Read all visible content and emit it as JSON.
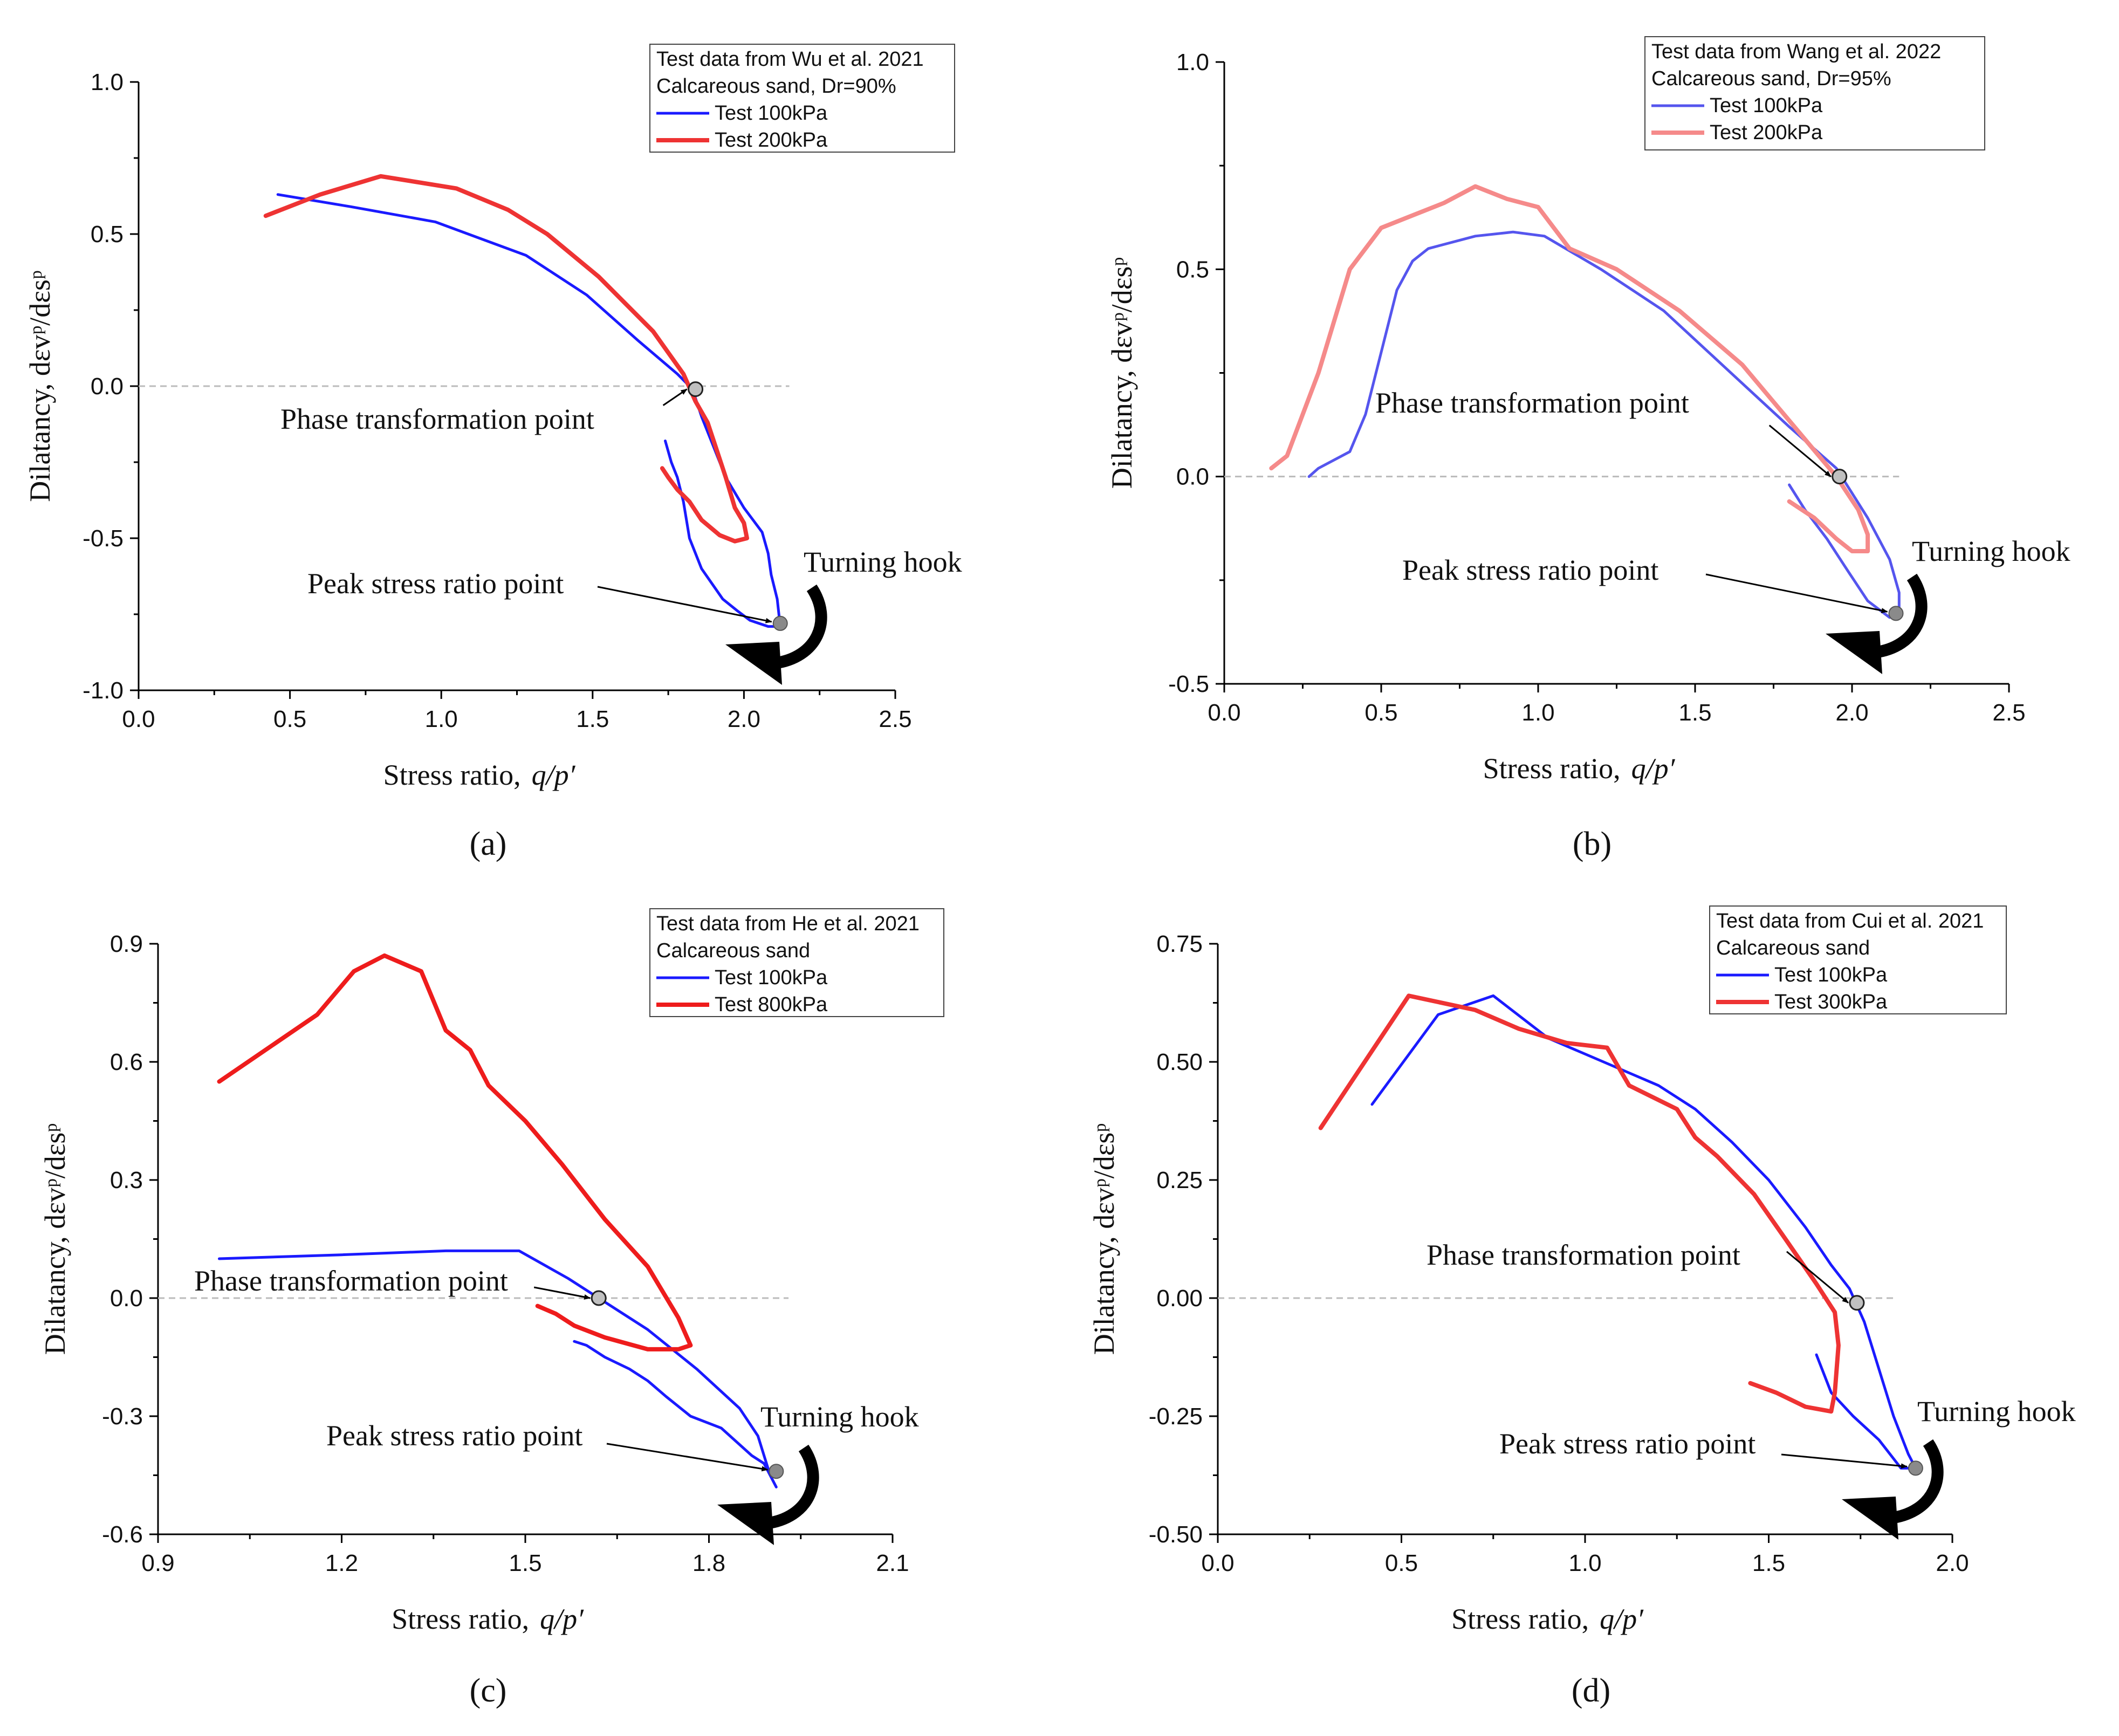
{
  "figure": {
    "panel_labels": [
      "(a)",
      "(b)",
      "(c)",
      "(d)"
    ]
  },
  "chart_data": [
    {
      "id": "a",
      "type": "line",
      "panel_label": "(a)",
      "xlabel": "Stress ratio,",
      "xlabel_var": "q/p′",
      "ylabel": "Dilatancy, dεvᵖ/dεsᵖ",
      "xlim": [
        0,
        2.5
      ],
      "ylim": [
        -1.0,
        1.0
      ],
      "xticks": [
        0,
        0.5,
        1.0,
        1.5,
        2.0,
        2.5
      ],
      "xtick_labels": [
        "0.0",
        "0.5",
        "1.0",
        "1.5",
        "2.0",
        "2.5"
      ],
      "yticks": [
        -1.0,
        -0.5,
        0.0,
        0.5,
        1.0
      ],
      "ytick_labels": [
        "-1.0",
        "-0.5",
        "0.0",
        "0.5",
        "1.0"
      ],
      "zero_line_xmax": 2.15,
      "legend_title": [
        "Test data from Wu et al. 2021",
        "Calcareous sand, Dr=90%"
      ],
      "series": [
        {
          "name": "Test 100kPa",
          "color": "#1a1aff",
          "x": [
            0.46,
            0.7,
            0.98,
            1.28,
            1.48,
            1.65,
            1.78,
            1.83,
            1.86,
            1.9,
            1.94,
            2.0,
            2.06,
            2.08,
            2.09,
            2.11,
            2.12,
            2.08,
            2.02,
            1.98,
            1.93,
            1.86,
            1.82,
            1.8,
            1.78,
            1.76,
            1.74
          ],
          "y": [
            0.63,
            0.59,
            0.54,
            0.43,
            0.3,
            0.15,
            0.04,
            -0.01,
            -0.1,
            -0.2,
            -0.3,
            -0.4,
            -0.48,
            -0.55,
            -0.62,
            -0.7,
            -0.79,
            -0.79,
            -0.77,
            -0.74,
            -0.7,
            -0.6,
            -0.5,
            -0.38,
            -0.3,
            -0.25,
            -0.18
          ]
        },
        {
          "name": "Test 200kPa",
          "color": "#ee3333",
          "x": [
            0.42,
            0.6,
            0.8,
            1.05,
            1.22,
            1.35,
            1.52,
            1.7,
            1.8,
            1.84,
            1.88,
            1.9,
            1.94,
            1.97,
            2.0,
            2.01,
            1.97,
            1.92,
            1.86,
            1.82,
            1.78,
            1.75,
            1.73
          ],
          "y": [
            0.56,
            0.63,
            0.69,
            0.65,
            0.58,
            0.5,
            0.36,
            0.18,
            0.04,
            -0.05,
            -0.12,
            -0.18,
            -0.3,
            -0.4,
            -0.45,
            -0.5,
            -0.51,
            -0.49,
            -0.44,
            -0.38,
            -0.34,
            -0.3,
            -0.27
          ]
        }
      ],
      "points": {
        "pt": {
          "x": 1.84,
          "y": -0.01
        },
        "peak": {
          "x": 2.12,
          "y": -0.78
        }
      },
      "annotations": {
        "phase_transformation": "Phase transformation point",
        "peak_stress_ratio": "Peak stress ratio point",
        "turning_hook": "Turning hook"
      }
    },
    {
      "id": "b",
      "type": "line",
      "panel_label": "(b)",
      "xlabel": "Stress ratio,",
      "xlabel_var": "q/p′",
      "ylabel": "Dilatancy, dεvᵖ/dεsᵖ",
      "xlim": [
        0,
        2.5
      ],
      "ylim": [
        -0.5,
        1.0
      ],
      "xticks": [
        0,
        0.5,
        1.0,
        1.5,
        2.0,
        2.5
      ],
      "xtick_labels": [
        "0.0",
        "0.5",
        "1.0",
        "1.5",
        "2.0",
        "2.5"
      ],
      "yticks": [
        -0.5,
        0.0,
        0.5,
        1.0
      ],
      "ytick_labels": [
        "-0.5",
        "0.0",
        "0.5",
        "1.0"
      ],
      "zero_line_xmax": 2.15,
      "legend_title": [
        "Test data from Wang et al. 2022",
        "Calcareous sand, Dr=95%"
      ],
      "series": [
        {
          "name": "Test 100kPa",
          "color": "#5555ee",
          "x": [
            0.27,
            0.3,
            0.4,
            0.45,
            0.5,
            0.55,
            0.6,
            0.65,
            0.8,
            0.92,
            1.02,
            1.2,
            1.4,
            1.6,
            1.8,
            1.95,
            2.05,
            2.12,
            2.15,
            2.15,
            2.12,
            2.05,
            1.98,
            1.92,
            1.85,
            1.8
          ],
          "y": [
            0.0,
            0.02,
            0.06,
            0.15,
            0.3,
            0.45,
            0.52,
            0.55,
            0.58,
            0.59,
            0.58,
            0.5,
            0.4,
            0.26,
            0.12,
            0.02,
            -0.1,
            -0.2,
            -0.28,
            -0.33,
            -0.34,
            -0.3,
            -0.22,
            -0.15,
            -0.08,
            -0.02
          ]
        },
        {
          "name": "Test 200kPa",
          "color": "#f58a8a",
          "x": [
            0.15,
            0.2,
            0.3,
            0.4,
            0.5,
            0.6,
            0.7,
            0.8,
            0.9,
            1.0,
            1.05,
            1.1,
            1.25,
            1.45,
            1.65,
            1.85,
            1.95,
            2.02,
            2.05,
            2.05,
            2.0,
            1.95,
            1.88,
            1.8
          ],
          "y": [
            0.02,
            0.05,
            0.25,
            0.5,
            0.6,
            0.63,
            0.66,
            0.7,
            0.67,
            0.65,
            0.6,
            0.55,
            0.5,
            0.4,
            0.27,
            0.09,
            0.0,
            -0.08,
            -0.14,
            -0.18,
            -0.18,
            -0.15,
            -0.1,
            -0.06
          ]
        }
      ],
      "points": {
        "pt": {
          "x": 1.96,
          "y": 0.0
        },
        "peak": {
          "x": 2.14,
          "y": -0.33
        }
      },
      "annotations": {
        "phase_transformation": "Phase transformation point",
        "peak_stress_ratio": "Peak stress ratio point",
        "turning_hook": "Turning hook"
      }
    },
    {
      "id": "c",
      "type": "line",
      "panel_label": "(c)",
      "xlabel": "Stress ratio,",
      "xlabel_var": "q/p′",
      "ylabel": "Dilatancy, dεvᵖ/dεsᵖ",
      "xlim": [
        0.9,
        2.1
      ],
      "ylim": [
        -0.6,
        0.9
      ],
      "xticks": [
        0.9,
        1.2,
        1.5,
        1.8,
        2.1
      ],
      "xtick_labels": [
        "0.9",
        "1.2",
        "1.5",
        "1.8",
        "2.1"
      ],
      "yticks": [
        -0.6,
        -0.3,
        0.0,
        0.3,
        0.6,
        0.9
      ],
      "ytick_labels": [
        "-0.6",
        "-0.3",
        "0.0",
        "0.3",
        "0.6",
        "0.9"
      ],
      "zero_line_xmax": 1.93,
      "legend_title": [
        "Test data from He et al. 2021",
        "Calcareous sand"
      ],
      "series": [
        {
          "name": "Test 100kPa",
          "color": "#1a1aff",
          "x": [
            1.0,
            1.2,
            1.37,
            1.49,
            1.57,
            1.62,
            1.7,
            1.78,
            1.85,
            1.88,
            1.9,
            1.91,
            1.89,
            1.87,
            1.82,
            1.77,
            1.73,
            1.7,
            1.67,
            1.63,
            1.6,
            1.58
          ],
          "y": [
            0.1,
            0.11,
            0.12,
            0.12,
            0.05,
            0.0,
            -0.08,
            -0.18,
            -0.28,
            -0.35,
            -0.45,
            -0.48,
            -0.42,
            -0.4,
            -0.33,
            -0.3,
            -0.25,
            -0.21,
            -0.18,
            -0.15,
            -0.12,
            -0.11
          ]
        },
        {
          "name": "Test 800kPa",
          "color": "#ee1c1c",
          "x": [
            1.0,
            1.16,
            1.22,
            1.27,
            1.33,
            1.37,
            1.41,
            1.44,
            1.5,
            1.56,
            1.63,
            1.7,
            1.75,
            1.77,
            1.75,
            1.7,
            1.63,
            1.58,
            1.55,
            1.52
          ],
          "y": [
            0.55,
            0.72,
            0.83,
            0.87,
            0.83,
            0.68,
            0.63,
            0.54,
            0.45,
            0.34,
            0.2,
            0.08,
            -0.05,
            -0.12,
            -0.13,
            -0.13,
            -0.1,
            -0.07,
            -0.04,
            -0.02
          ]
        }
      ],
      "points": {
        "pt": {
          "x": 1.62,
          "y": 0.0
        },
        "peak": {
          "x": 1.91,
          "y": -0.44
        }
      },
      "annotations": {
        "phase_transformation": "Phase transformation point",
        "peak_stress_ratio": "Peak stress ratio point",
        "turning_hook": "Turning hook"
      }
    },
    {
      "id": "d",
      "type": "line",
      "panel_label": "(d)",
      "xlabel": "Stress ratio,",
      "xlabel_var": "q/p′",
      "ylabel": "Dilatancy, dεvᵖ/dεsᵖ",
      "xlim": [
        0.0,
        2.0
      ],
      "ylim": [
        -0.5,
        0.75
      ],
      "xticks": [
        0.0,
        0.5,
        1.0,
        1.5,
        2.0
      ],
      "xtick_labels": [
        "0.0",
        "0.5",
        "1.0",
        "1.5",
        "2.0"
      ],
      "yticks": [
        -0.5,
        -0.25,
        0.0,
        0.25,
        0.5,
        0.75
      ],
      "ytick_labels": [
        "-0.50",
        "-0.25",
        "0.00",
        "0.25",
        "0.50",
        "0.75"
      ],
      "zero_line_xmax": 1.85,
      "legend_title": [
        "Test data from Cui et al. 2021",
        "Calcareous sand"
      ],
      "series": [
        {
          "name": "Test 100kPa",
          "color": "#1a1aff",
          "x": [
            0.42,
            0.6,
            0.75,
            0.9,
            1.05,
            1.2,
            1.3,
            1.4,
            1.5,
            1.6,
            1.67,
            1.72,
            1.76,
            1.8,
            1.84,
            1.88,
            1.9,
            1.86,
            1.8,
            1.73,
            1.67,
            1.63
          ],
          "y": [
            0.41,
            0.6,
            0.64,
            0.55,
            0.5,
            0.45,
            0.4,
            0.33,
            0.25,
            0.15,
            0.07,
            0.02,
            -0.05,
            -0.15,
            -0.25,
            -0.33,
            -0.36,
            -0.36,
            -0.3,
            -0.25,
            -0.2,
            -0.12
          ]
        },
        {
          "name": "Test 300kPa",
          "color": "#ee3333",
          "x": [
            0.28,
            0.52,
            0.7,
            0.82,
            0.95,
            1.06,
            1.12,
            1.25,
            1.3,
            1.36,
            1.46,
            1.55,
            1.63,
            1.68,
            1.69,
            1.68,
            1.67,
            1.6,
            1.52,
            1.45
          ],
          "y": [
            0.36,
            0.64,
            0.61,
            0.57,
            0.54,
            0.53,
            0.45,
            0.4,
            0.34,
            0.3,
            0.22,
            0.12,
            0.03,
            -0.03,
            -0.1,
            -0.2,
            -0.24,
            -0.23,
            -0.2,
            -0.18
          ]
        }
      ],
      "points": {
        "pt": {
          "x": 1.74,
          "y": -0.01
        },
        "peak": {
          "x": 1.9,
          "y": -0.36
        }
      },
      "annotations": {
        "phase_transformation": "Phase transformation point",
        "peak_stress_ratio": "Peak stress ratio point",
        "turning_hook": "Turning hook"
      }
    }
  ]
}
